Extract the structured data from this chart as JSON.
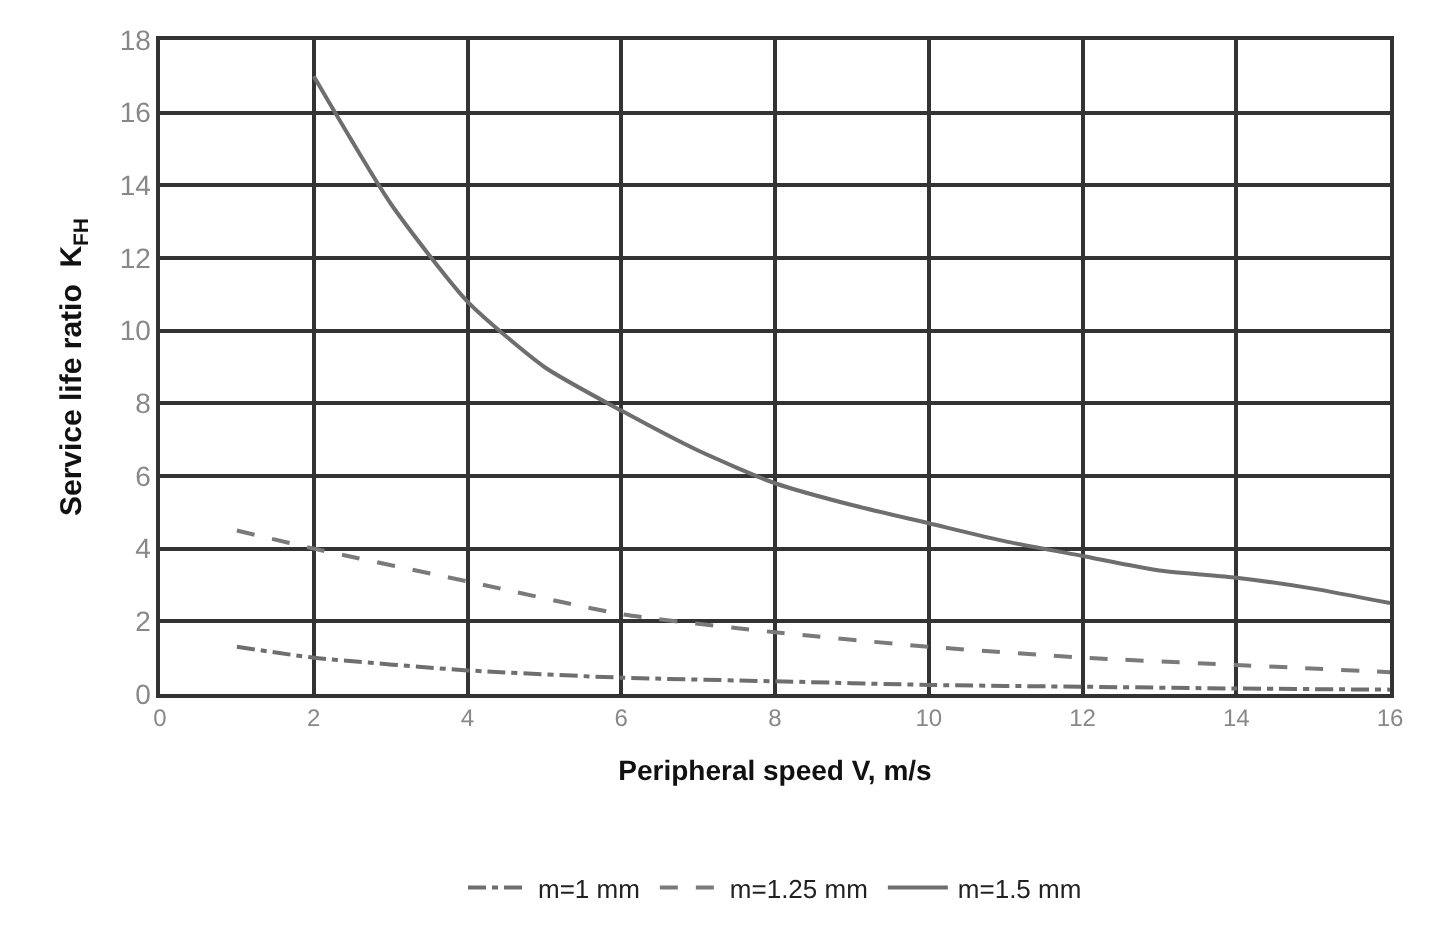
{
  "chart_data": {
    "type": "line",
    "xlabel": "Peripheral speed V, m/s",
    "ylabel": "Service life ratio  K$_{FH}$",
    "xlim": [
      0,
      16
    ],
    "xticks": [
      0,
      2,
      4,
      6,
      8,
      10,
      12,
      14,
      16
    ],
    "ylim": [
      0,
      18
    ],
    "yticks": [
      0,
      2,
      4,
      6,
      8,
      10,
      12,
      14,
      16,
      18
    ],
    "grid": true,
    "legend": "bottom",
    "marker": "none",
    "series": [
      {
        "name": "m=1 mm",
        "color": "#6e6e6e",
        "line_style": "dashdot",
        "x": [
          1,
          2,
          4,
          6,
          8,
          10,
          12,
          14,
          16
        ],
        "values": [
          1.3,
          1.0,
          0.65,
          0.45,
          0.35,
          0.25,
          0.2,
          0.15,
          0.12
        ]
      },
      {
        "name": "m=1.25 mm",
        "color": "#7a7a7a",
        "line_style": "dashed",
        "x": [
          1,
          2,
          4,
          6,
          8,
          10,
          12,
          14,
          16
        ],
        "values": [
          4.5,
          4.0,
          3.1,
          2.2,
          1.7,
          1.3,
          1.0,
          0.8,
          0.6
        ]
      },
      {
        "name": "m=1.5 mm",
        "color": "#6e6e6e",
        "line_style": "solid",
        "x": [
          2,
          3,
          4,
          5,
          6,
          7,
          8,
          9,
          10,
          11,
          12,
          13,
          14,
          15,
          16
        ],
        "values": [
          17,
          13.5,
          10.8,
          9.0,
          7.8,
          6.7,
          5.8,
          5.2,
          4.7,
          4.2,
          3.8,
          3.4,
          3.2,
          2.9,
          2.5
        ]
      }
    ]
  }
}
